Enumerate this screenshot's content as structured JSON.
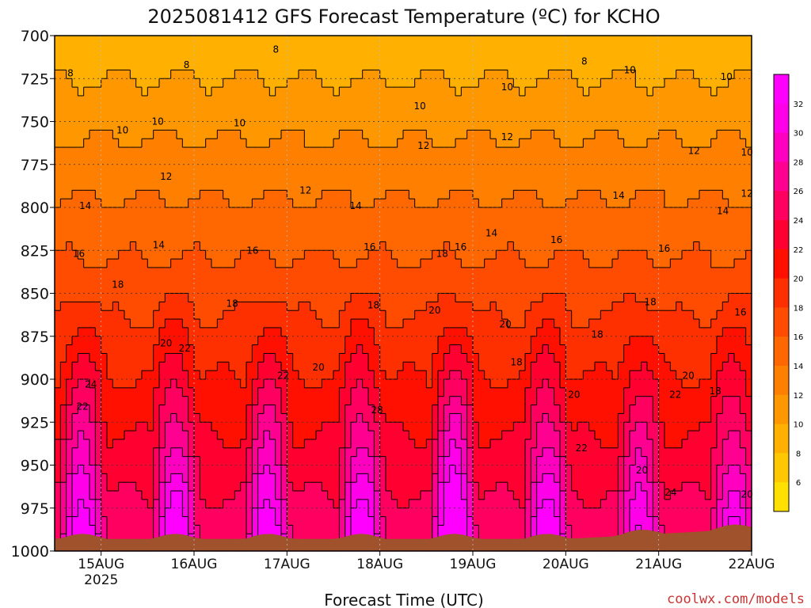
{
  "chart_data": {
    "type": "heatmap",
    "title": "2025081412 GFS Forecast Temperature (ºC) for KCHO",
    "xlabel": "Forecast Time (UTC)",
    "ylabel": "",
    "x_ticks": [
      "15AUG",
      "16AUG",
      "17AUG",
      "18AUG",
      "19AUG",
      "20AUG",
      "21AUG",
      "22AUG"
    ],
    "x_tick_sub": "2025",
    "y_ticks": [
      700,
      725,
      750,
      775,
      800,
      825,
      850,
      875,
      900,
      925,
      950,
      975,
      1000
    ],
    "y_range": [
      700,
      1000
    ],
    "x_range_days": [
      14.5,
      22.0
    ],
    "grid": true,
    "colorbar": {
      "ticks": [
        6,
        8,
        10,
        12,
        14,
        16,
        18,
        20,
        22,
        24,
        26,
        28,
        30,
        32
      ],
      "colors": [
        "#ffe000",
        "#ffc800",
        "#ffb000",
        "#ff9800",
        "#ff8000",
        "#ff6800",
        "#ff4c00",
        "#ff3000",
        "#ff1000",
        "#ff0030",
        "#ff0060",
        "#ff0090",
        "#ff00c0",
        "#ff00e8",
        "#ff00ff"
      ]
    },
    "contour_labels": [
      {
        "t": 14.67,
        "p": 722,
        "v": "8"
      },
      {
        "t": 15.92,
        "p": 717,
        "v": "8"
      },
      {
        "t": 16.88,
        "p": 708,
        "v": "8"
      },
      {
        "t": 20.2,
        "p": 715,
        "v": "8"
      },
      {
        "t": 15.23,
        "p": 755,
        "v": "10"
      },
      {
        "t": 15.61,
        "p": 750,
        "v": "10"
      },
      {
        "t": 16.49,
        "p": 751,
        "v": "10"
      },
      {
        "t": 18.43,
        "p": 741,
        "v": "10"
      },
      {
        "t": 19.37,
        "p": 730,
        "v": "10"
      },
      {
        "t": 20.69,
        "p": 720,
        "v": "10"
      },
      {
        "t": 21.73,
        "p": 724,
        "v": "10"
      },
      {
        "t": 22.0,
        "p": 768,
        "v": "10"
      },
      {
        "t": 15.7,
        "p": 782,
        "v": "12"
      },
      {
        "t": 17.2,
        "p": 790,
        "v": "12"
      },
      {
        "t": 18.47,
        "p": 764,
        "v": "12"
      },
      {
        "t": 19.37,
        "p": 759,
        "v": "12"
      },
      {
        "t": 21.38,
        "p": 767,
        "v": "12"
      },
      {
        "t": 22.0,
        "p": 792,
        "v": "12"
      },
      {
        "t": 14.83,
        "p": 799,
        "v": "14"
      },
      {
        "t": 15.62,
        "p": 822,
        "v": "14"
      },
      {
        "t": 17.74,
        "p": 799,
        "v": "14"
      },
      {
        "t": 19.2,
        "p": 815,
        "v": "14"
      },
      {
        "t": 20.57,
        "p": 793,
        "v": "14"
      },
      {
        "t": 21.69,
        "p": 802,
        "v": "14"
      },
      {
        "t": 14.76,
        "p": 827,
        "v": "16"
      },
      {
        "t": 16.63,
        "p": 825,
        "v": "16"
      },
      {
        "t": 17.89,
        "p": 823,
        "v": "16"
      },
      {
        "t": 18.87,
        "p": 823,
        "v": "16"
      },
      {
        "t": 19.9,
        "p": 819,
        "v": "16"
      },
      {
        "t": 21.06,
        "p": 824,
        "v": "16"
      },
      {
        "t": 21.88,
        "p": 861,
        "v": "16"
      },
      {
        "t": 15.18,
        "p": 845,
        "v": "18"
      },
      {
        "t": 16.41,
        "p": 856,
        "v": "18"
      },
      {
        "t": 17.93,
        "p": 857,
        "v": "18"
      },
      {
        "t": 18.67,
        "p": 827,
        "v": "18"
      },
      {
        "t": 19.47,
        "p": 890,
        "v": "18"
      },
      {
        "t": 20.34,
        "p": 874,
        "v": "18"
      },
      {
        "t": 20.91,
        "p": 855,
        "v": "18"
      },
      {
        "t": 21.61,
        "p": 907,
        "v": "18"
      },
      {
        "t": 15.7,
        "p": 879,
        "v": "20"
      },
      {
        "t": 17.34,
        "p": 893,
        "v": "20"
      },
      {
        "t": 18.59,
        "p": 860,
        "v": "20"
      },
      {
        "t": 19.35,
        "p": 868,
        "v": "20"
      },
      {
        "t": 20.09,
        "p": 909,
        "v": "20"
      },
      {
        "t": 21.32,
        "p": 898,
        "v": "20"
      },
      {
        "t": 22.17,
        "p": 967,
        "v": "20"
      },
      {
        "t": 14.8,
        "p": 916,
        "v": "22"
      },
      {
        "t": 15.9,
        "p": 882,
        "v": "22"
      },
      {
        "t": 16.96,
        "p": 898,
        "v": "22"
      },
      {
        "t": 20.17,
        "p": 940,
        "v": "22"
      },
      {
        "t": 21.18,
        "p": 909,
        "v": "22"
      },
      {
        "t": 14.89,
        "p": 903,
        "v": "24"
      },
      {
        "t": 21.13,
        "p": 966,
        "v": "24"
      },
      {
        "t": 17.97,
        "p": 918,
        "v": "28"
      },
      {
        "t": 20.82,
        "p": 953,
        "v": "20"
      }
    ]
  },
  "footer": {
    "source": "coolwx.com/models"
  },
  "colors": {
    "ground": "#a0522d",
    "frame": "#000000",
    "grid": "#a0a0a0",
    "source_text": "#cc3333"
  }
}
